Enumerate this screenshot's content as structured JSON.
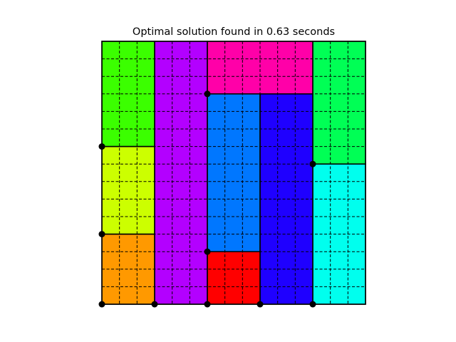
{
  "title": "Optimal solution found in 0.63 seconds",
  "grid": {
    "cols": 15,
    "rows": 15
  },
  "rectangles": [
    {
      "id": "green",
      "color": "#3bff00",
      "x": 0,
      "y": 9,
      "w": 3,
      "h": 6
    },
    {
      "id": "lime",
      "color": "#ccff00",
      "x": 0,
      "y": 4,
      "w": 3,
      "h": 5
    },
    {
      "id": "orange",
      "color": "#ff9900",
      "x": 0,
      "y": 0,
      "w": 3,
      "h": 4
    },
    {
      "id": "purple",
      "color": "#b300ff",
      "x": 3,
      "y": 0,
      "w": 3,
      "h": 15
    },
    {
      "id": "magenta",
      "color": "#ff00a8",
      "x": 6,
      "y": 12,
      "w": 6,
      "h": 3
    },
    {
      "id": "azure",
      "color": "#0077ff",
      "x": 6,
      "y": 3,
      "w": 3,
      "h": 9
    },
    {
      "id": "red",
      "color": "#ff0000",
      "x": 6,
      "y": 0,
      "w": 3,
      "h": 3
    },
    {
      "id": "blue",
      "color": "#1f00ff",
      "x": 9,
      "y": 0,
      "w": 3,
      "h": 12
    },
    {
      "id": "spring-green",
      "color": "#00ff55",
      "x": 12,
      "y": 8,
      "w": 3,
      "h": 7
    },
    {
      "id": "cyan",
      "color": "#00ffee",
      "x": 12,
      "y": 0,
      "w": 3,
      "h": 8
    }
  ],
  "corner_points": [
    [
      0,
      0
    ],
    [
      0,
      4
    ],
    [
      0,
      9
    ],
    [
      3,
      0
    ],
    [
      6,
      0
    ],
    [
      6,
      3
    ],
    [
      6,
      12
    ],
    [
      9,
      0
    ],
    [
      12,
      0
    ],
    [
      12,
      8
    ]
  ]
}
